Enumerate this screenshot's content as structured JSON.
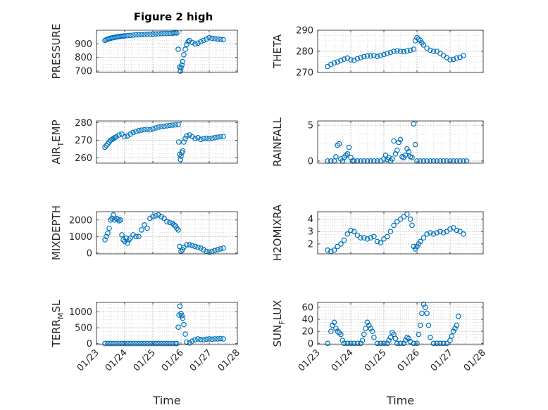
{
  "figure_title": "Figure 2 high",
  "chart_data": [
    {
      "type": "scatter",
      "ylabel": "PRESSURE",
      "ylim": [
        690,
        1000
      ],
      "yticks": [
        700,
        800,
        900
      ],
      "xlim_days": [
        23.0,
        28.0
      ],
      "x_ticks_visible": false,
      "marker": "circle-open",
      "color": "#0072BD",
      "grid": true,
      "series": [
        {
          "x_days": [
            23.3,
            23.35,
            23.4,
            23.45,
            23.5,
            23.55,
            23.6,
            23.65,
            23.7,
            23.75,
            23.8,
            23.85,
            23.9,
            23.95,
            24.0,
            24.1,
            24.2,
            24.3,
            24.4,
            24.5,
            24.6,
            24.7,
            24.8,
            24.9,
            25.0,
            25.1,
            25.2,
            25.3,
            25.4,
            25.5,
            25.6,
            25.7,
            25.75,
            25.8,
            25.85,
            25.9,
            25.95,
            25.98,
            26.0,
            26.03,
            26.06,
            26.1,
            26.15,
            26.2,
            26.25,
            26.3,
            26.4,
            26.5,
            26.6,
            26.7,
            26.8,
            26.9,
            27.0,
            27.1,
            27.2,
            27.3,
            27.4,
            27.5
          ],
          "y": [
            925,
            930,
            935,
            938,
            941,
            944,
            946,
            948,
            950,
            952,
            953,
            955,
            956,
            957,
            958,
            960,
            962,
            964,
            966,
            967,
            968,
            969,
            970,
            971,
            972,
            973,
            974,
            975,
            976,
            976,
            977,
            978,
            980,
            982,
            980,
            860,
            730,
            700,
            725,
            745,
            770,
            820,
            860,
            895,
            915,
            925,
            910,
            900,
            905,
            915,
            925,
            935,
            945,
            940,
            938,
            935,
            932,
            930
          ]
        }
      ]
    },
    {
      "type": "scatter",
      "ylabel": "THETA",
      "ylim": [
        270,
        290
      ],
      "yticks": [
        270,
        280,
        290
      ],
      "xlim_days": [
        23.0,
        28.0
      ],
      "x_ticks_visible": false,
      "marker": "circle-open",
      "color": "#0072BD",
      "grid": true,
      "series": [
        {
          "x_days": [
            23.3,
            23.4,
            23.5,
            23.6,
            23.7,
            23.8,
            23.9,
            24.0,
            24.1,
            24.2,
            24.3,
            24.4,
            24.5,
            24.6,
            24.7,
            24.8,
            24.9,
            25.0,
            25.1,
            25.2,
            25.3,
            25.4,
            25.5,
            25.6,
            25.7,
            25.8,
            25.9,
            25.95,
            26.0,
            26.05,
            26.1,
            26.15,
            26.2,
            26.3,
            26.4,
            26.5,
            26.6,
            26.7,
            26.8,
            26.9,
            27.0,
            27.1,
            27.2,
            27.3,
            27.4
          ],
          "y": [
            272.8,
            273.8,
            274.5,
            275.0,
            275.6,
            276.3,
            276.8,
            276.0,
            275.8,
            276.5,
            277.0,
            277.5,
            277.8,
            277.8,
            278.0,
            277.6,
            278.0,
            278.5,
            279.0,
            279.5,
            280.0,
            280.2,
            280.0,
            279.8,
            280.2,
            280.5,
            281.0,
            285.0,
            286.5,
            285.8,
            285.2,
            284.0,
            283.0,
            281.5,
            280.5,
            280.0,
            280.0,
            279.0,
            278.0,
            277.0,
            276.0,
            276.2,
            276.8,
            277.2,
            278.0
          ]
        }
      ]
    },
    {
      "type": "scatter",
      "ylabel": "AIR_TEMP",
      "ylim": [
        257,
        281
      ],
      "yticks": [
        260,
        270,
        280
      ],
      "xlim_days": [
        23.0,
        28.0
      ],
      "x_ticks_visible": false,
      "marker": "circle-open",
      "color": "#0072BD",
      "grid": true,
      "series": [
        {
          "x_days": [
            23.3,
            23.35,
            23.4,
            23.45,
            23.5,
            23.55,
            23.6,
            23.65,
            23.7,
            23.8,
            23.9,
            24.0,
            24.1,
            24.2,
            24.3,
            24.4,
            24.5,
            24.6,
            24.7,
            24.8,
            24.9,
            25.0,
            25.1,
            25.2,
            25.3,
            25.4,
            25.5,
            25.6,
            25.7,
            25.8,
            25.9,
            25.92,
            25.95,
            25.98,
            26.0,
            26.03,
            26.06,
            26.1,
            26.15,
            26.2,
            26.3,
            26.4,
            26.5,
            26.6,
            26.7,
            26.8,
            26.9,
            27.0,
            27.1,
            27.2,
            27.3,
            27.4,
            27.5
          ],
          "y": [
            266,
            267,
            268,
            269,
            270,
            270.5,
            271,
            271.5,
            272,
            273,
            273.5,
            272,
            272.5,
            273.5,
            274.5,
            275,
            275.5,
            275.8,
            276,
            276.2,
            276,
            276.5,
            277,
            277.5,
            277.8,
            278,
            278.2,
            278.4,
            278.6,
            278.8,
            279,
            269,
            262,
            259,
            261,
            263,
            264,
            269,
            271,
            272.5,
            273,
            272,
            271,
            271.5,
            270.5,
            271,
            271.2,
            271,
            271.2,
            271.5,
            271.8,
            272,
            272.2
          ]
        }
      ]
    },
    {
      "type": "scatter",
      "ylabel": "RAINFALL",
      "ylim": [
        -0.3,
        5.6
      ],
      "yticks": [
        0,
        5
      ],
      "xlim_days": [
        23.0,
        28.0
      ],
      "x_ticks_visible": false,
      "marker": "circle-open",
      "color": "#0072BD",
      "grid": true,
      "series": [
        {
          "x_days": [
            23.3,
            23.4,
            23.5,
            23.55,
            23.6,
            23.65,
            23.7,
            23.75,
            23.8,
            23.85,
            23.9,
            23.95,
            24.0,
            24.05,
            24.1,
            24.2,
            24.3,
            24.4,
            24.5,
            24.6,
            24.7,
            24.8,
            24.9,
            25.0,
            25.05,
            25.1,
            25.15,
            25.2,
            25.25,
            25.3,
            25.35,
            25.4,
            25.45,
            25.5,
            25.55,
            25.6,
            25.65,
            25.7,
            25.75,
            25.8,
            25.85,
            25.9,
            25.95,
            26.0,
            26.1,
            26.2,
            26.3,
            26.4,
            26.5,
            26.6,
            26.7,
            26.8,
            26.9,
            27.0,
            27.1,
            27.2,
            27.3,
            27.4,
            27.5
          ],
          "y": [
            0,
            0,
            0,
            0.6,
            2.2,
            2.4,
            0.3,
            0,
            0.5,
            0.8,
            1.0,
            1.9,
            0.5,
            0,
            0,
            0,
            0,
            0,
            0,
            0,
            0,
            0,
            0,
            0.3,
            0.8,
            0.2,
            0.5,
            0,
            0.3,
            2.8,
            1.0,
            1.5,
            2.6,
            3.0,
            0.6,
            0.5,
            0.8,
            1.7,
            1.3,
            0.6,
            0.5,
            5.2,
            2.3,
            0,
            0,
            0,
            0,
            0,
            0,
            0,
            0,
            0,
            0,
            0,
            0,
            0,
            0,
            0,
            0
          ]
        }
      ]
    },
    {
      "type": "scatter",
      "ylabel": "MIXDEPTH",
      "ylim": [
        -50,
        2500
      ],
      "yticks": [
        0,
        1000,
        2000
      ],
      "xlim_days": [
        23.0,
        28.0
      ],
      "x_ticks_visible": false,
      "marker": "circle-open",
      "color": "#0072BD",
      "grid": true,
      "series": [
        {
          "x_days": [
            23.3,
            23.35,
            23.4,
            23.45,
            23.5,
            23.55,
            23.6,
            23.65,
            23.7,
            23.75,
            23.8,
            23.85,
            23.9,
            23.95,
            24.0,
            24.05,
            24.1,
            24.15,
            24.2,
            24.3,
            24.4,
            24.5,
            24.6,
            24.7,
            24.8,
            24.9,
            25.0,
            25.1,
            25.2,
            25.3,
            25.4,
            25.5,
            25.6,
            25.7,
            25.75,
            25.8,
            25.85,
            25.9,
            25.95,
            26.0,
            26.05,
            26.1,
            26.2,
            26.3,
            26.4,
            26.5,
            26.6,
            26.7,
            26.8,
            26.9,
            27.0,
            27.1,
            27.2,
            27.3,
            27.4,
            27.5
          ],
          "y": [
            800,
            1000,
            1200,
            1500,
            2000,
            2100,
            2300,
            2000,
            2100,
            2050,
            1950,
            2000,
            1100,
            800,
            700,
            900,
            600,
            800,
            900,
            1100,
            1000,
            1000,
            1400,
            1700,
            1500,
            2100,
            2200,
            2250,
            2300,
            2200,
            2100,
            1900,
            1850,
            1800,
            1700,
            1650,
            1500,
            1400,
            400,
            100,
            200,
            350,
            500,
            500,
            450,
            400,
            350,
            300,
            200,
            100,
            50,
            100,
            150,
            200,
            250,
            300
          ]
        }
      ]
    },
    {
      "type": "scatter",
      "ylabel": "H2OMIXRA",
      "ylim": [
        1.2,
        4.6
      ],
      "yticks": [
        2,
        3,
        4
      ],
      "xlim_days": [
        23.0,
        28.0
      ],
      "x_ticks_visible": false,
      "marker": "circle-open",
      "color": "#0072BD",
      "grid": true,
      "series": [
        {
          "x_days": [
            23.3,
            23.4,
            23.5,
            23.6,
            23.7,
            23.8,
            23.9,
            24.0,
            24.1,
            24.2,
            24.3,
            24.4,
            24.5,
            24.6,
            24.7,
            24.8,
            24.9,
            25.0,
            25.1,
            25.2,
            25.3,
            25.4,
            25.5,
            25.6,
            25.7,
            25.8,
            25.85,
            25.9,
            25.95,
            26.0,
            26.05,
            26.1,
            26.2,
            26.3,
            26.4,
            26.5,
            26.6,
            26.7,
            26.8,
            26.9,
            27.0,
            27.1,
            27.2,
            27.3,
            27.4
          ],
          "y": [
            1.5,
            1.4,
            1.5,
            1.8,
            2.0,
            2.3,
            2.8,
            3.1,
            3.0,
            2.7,
            2.5,
            2.5,
            2.4,
            2.5,
            2.6,
            2.2,
            2.1,
            2.4,
            2.6,
            3.0,
            3.5,
            3.8,
            4.0,
            4.2,
            4.4,
            4.0,
            3.5,
            1.8,
            1.6,
            1.8,
            2.0,
            2.2,
            2.5,
            2.8,
            2.9,
            2.8,
            2.9,
            3.0,
            2.9,
            3.0,
            3.2,
            3.3,
            3.1,
            3.0,
            2.8
          ]
        }
      ]
    },
    {
      "type": "scatter",
      "ylabel": "TERR_MSL",
      "ylim": [
        -30,
        1300
      ],
      "yticks": [
        0,
        500,
        1000
      ],
      "xlim_days": [
        23.0,
        28.0
      ],
      "xticks": [
        "01/23",
        "01/24",
        "01/25",
        "01/26",
        "01/27",
        "01/28"
      ],
      "xlabel": "Time",
      "marker": "circle-open",
      "color": "#0072BD",
      "grid": true,
      "series": [
        {
          "x_days": [
            23.3,
            23.4,
            23.5,
            23.6,
            23.7,
            23.8,
            23.9,
            24.0,
            24.1,
            24.2,
            24.3,
            24.4,
            24.5,
            24.6,
            24.7,
            24.8,
            24.9,
            25.0,
            25.1,
            25.2,
            25.3,
            25.4,
            25.5,
            25.6,
            25.7,
            25.8,
            25.85,
            25.9,
            25.93,
            25.96,
            26.0,
            26.03,
            26.06,
            26.1,
            26.15,
            26.2,
            26.3,
            26.4,
            26.5,
            26.6,
            26.7,
            26.8,
            26.9,
            27.0,
            27.1,
            27.2,
            27.3,
            27.4,
            27.5
          ],
          "y": [
            0,
            0,
            0,
            0,
            0,
            0,
            0,
            0,
            0,
            0,
            0,
            0,
            0,
            0,
            0,
            0,
            0,
            0,
            0,
            0,
            0,
            0,
            0,
            0,
            0,
            0,
            0,
            520,
            900,
            1180,
            950,
            880,
            800,
            600,
            300,
            50,
            20,
            80,
            120,
            150,
            130,
            120,
            140,
            150,
            140,
            150,
            150,
            160,
            150
          ]
        }
      ]
    },
    {
      "type": "scatter",
      "ylabel": "SUN_FLUX",
      "ylim": [
        -2,
        68
      ],
      "yticks": [
        0,
        20,
        40,
        60
      ],
      "xlim_days": [
        23.0,
        28.0
      ],
      "xticks": [
        "01/23",
        "01/24",
        "01/25",
        "01/26",
        "01/27",
        "01/28"
      ],
      "xlabel": "Time",
      "marker": "circle-open",
      "color": "#0072BD",
      "grid": true,
      "series": [
        {
          "x_days": [
            23.3,
            23.4,
            23.45,
            23.5,
            23.55,
            23.6,
            23.65,
            23.7,
            23.75,
            23.8,
            23.9,
            24.0,
            24.1,
            24.2,
            24.3,
            24.35,
            24.4,
            24.45,
            24.5,
            24.55,
            24.6,
            24.65,
            24.7,
            24.8,
            24.9,
            25.0,
            25.1,
            25.15,
            25.2,
            25.25,
            25.3,
            25.35,
            25.4,
            25.5,
            25.6,
            25.65,
            25.7,
            25.75,
            25.8,
            25.9,
            26.0,
            26.05,
            26.1,
            26.15,
            26.2,
            26.25,
            26.3,
            26.35,
            26.4,
            26.5,
            26.6,
            26.7,
            26.8,
            26.9,
            27.0,
            27.05,
            27.1,
            27.15,
            27.2,
            27.25
          ],
          "y": [
            0,
            20,
            30,
            35,
            25,
            20,
            18,
            15,
            5,
            0,
            0,
            0,
            0,
            0,
            0,
            5,
            15,
            25,
            35,
            30,
            25,
            20,
            10,
            0,
            0,
            0,
            0,
            5,
            10,
            18,
            15,
            8,
            0,
            0,
            0,
            5,
            10,
            8,
            3,
            0,
            0,
            15,
            30,
            50,
            65,
            60,
            50,
            30,
            10,
            0,
            0,
            0,
            0,
            0,
            5,
            12,
            20,
            25,
            30,
            45
          ]
        }
      ]
    }
  ]
}
